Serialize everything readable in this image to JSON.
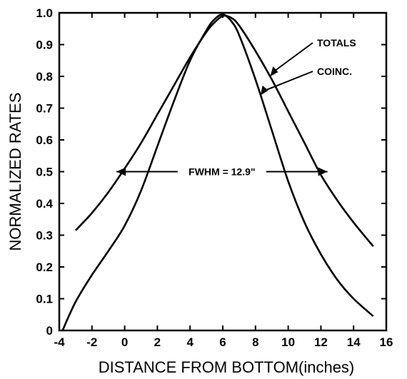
{
  "chart_data": {
    "type": "line",
    "xlabel": "DISTANCE FROM BOTTOM(inches)",
    "ylabel": "NORMALIZED RATES",
    "xlim": [
      -4,
      16
    ],
    "ylim": [
      0,
      1.0
    ],
    "x_ticks": [
      -4,
      -2,
      0,
      2,
      4,
      6,
      8,
      10,
      12,
      14,
      16
    ],
    "x_tick_labels": [
      "-4",
      "-2",
      "0",
      "2",
      "4",
      "6",
      "8",
      "10",
      "12",
      "14",
      "16"
    ],
    "y_ticks": [
      0,
      0.1,
      0.2,
      0.3,
      0.4,
      0.5,
      0.6,
      0.7,
      0.8,
      0.9,
      1.0
    ],
    "y_tick_labels": [
      "0",
      "0.1",
      "0.2",
      "0.3",
      "0.4",
      "0.5",
      "0.6",
      "0.7",
      "0.8",
      "0.9",
      "1.0"
    ],
    "grid": false,
    "series": [
      {
        "name": "TOTALS",
        "x": [
          -3,
          -2,
          -1,
          0,
          1,
          2,
          3,
          4,
          5,
          5.5,
          6,
          6.5,
          7,
          8,
          9,
          10,
          11,
          12,
          13,
          14,
          15.2
        ],
        "y": [
          0.315,
          0.37,
          0.435,
          0.51,
          0.59,
          0.68,
          0.77,
          0.86,
          0.94,
          0.97,
          0.99,
          0.985,
          0.96,
          0.88,
          0.79,
          0.69,
          0.59,
          0.49,
          0.41,
          0.34,
          0.265
        ]
      },
      {
        "name": "COINC.",
        "x": [
          -3.8,
          -3,
          -2,
          -1,
          0,
          1,
          2,
          3,
          4,
          5,
          5.5,
          6,
          6.5,
          7,
          8,
          9,
          10,
          11,
          12,
          13,
          14,
          15.2
        ],
        "y": [
          0.0,
          0.09,
          0.175,
          0.25,
          0.33,
          0.44,
          0.58,
          0.72,
          0.85,
          0.945,
          0.98,
          0.995,
          0.975,
          0.93,
          0.79,
          0.63,
          0.47,
          0.34,
          0.24,
          0.16,
          0.1,
          0.045
        ]
      }
    ],
    "annotations": {
      "fwhm_label": "FWHM = 12.9\"",
      "fwhm_left_x": -0.5,
      "fwhm_right_x": 12.4,
      "fwhm_y": 0.5
    }
  }
}
